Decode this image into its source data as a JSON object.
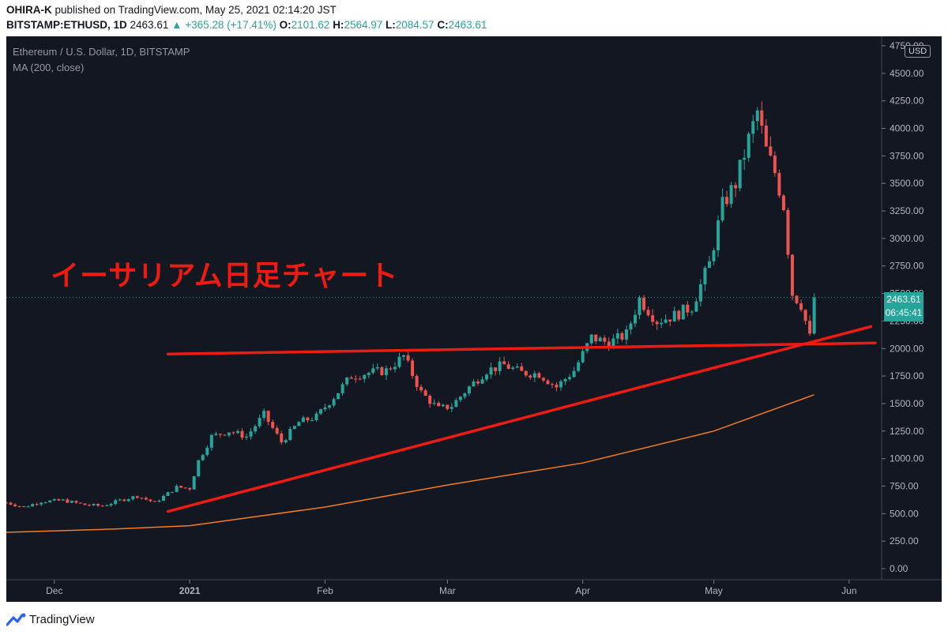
{
  "header": {
    "author": "OHIRA-K",
    "published_text": "published on TradingView.com, May 25, 2021 02:14:20 JST",
    "symbol": "BITSTAMP:ETHUSD, 1D",
    "last": "2463.61",
    "change": "+365.28 (+17.41%)",
    "o_label": "O:",
    "o": "2101.62",
    "h_label": "H:",
    "h": "2564.97",
    "l_label": "L:",
    "l": "2084.57",
    "c_label": "C:",
    "c": "2463.61"
  },
  "legend": {
    "title": "Ethereum / U.S. Dollar, 1D, BITSTAMP",
    "indicator": "MA (200, close)"
  },
  "annotation": {
    "text": "イーサリアム日足チャート"
  },
  "price_tag": {
    "price": "2463.61",
    "countdown": "06:45:41"
  },
  "currency": "USD",
  "footer": {
    "brand": "TradingView"
  },
  "colors": {
    "up": "#26a69a",
    "down": "#ef5350",
    "ma": "#f57c1f",
    "trendline": "#ef1a12",
    "bg": "#131722"
  },
  "chart_data": {
    "type": "candlestick",
    "title": "Ethereum / U.S. Dollar, 1D, BITSTAMP",
    "ylim": [
      0,
      4750
    ],
    "y_ticks": [
      "4750.00",
      "4500.00",
      "4250.00",
      "4000.00",
      "3750.00",
      "3500.00",
      "3250.00",
      "3000.00",
      "2750.00",
      "2500.00",
      "2250.00",
      "2000.00",
      "1750.00",
      "1500.00",
      "1250.00",
      "1000.00",
      "750.00",
      "500.00",
      "250.00",
      "0.00"
    ],
    "x_ticks": [
      "Dec",
      "2021",
      "Feb",
      "Mar",
      "Apr",
      "May",
      "Jun"
    ],
    "x_tick_dates": [
      "2020-12-01",
      "2021-01-01",
      "2021-02-01",
      "2021-03-01",
      "2021-04-01",
      "2021-05-01",
      "2021-06-01"
    ],
    "x_range": [
      "2020-11-20",
      "2021-06-07"
    ],
    "close_points": [
      [
        "2020-11-20",
        600
      ],
      [
        "2020-11-24",
        560
      ],
      [
        "2020-11-28",
        610
      ],
      [
        "2020-12-03",
        620
      ],
      [
        "2020-12-08",
        580
      ],
      [
        "2020-12-12",
        570
      ],
      [
        "2020-12-16",
        620
      ],
      [
        "2020-12-20",
        660
      ],
      [
        "2020-12-24",
        600
      ],
      [
        "2020-12-29",
        740
      ],
      [
        "2021-01-01",
        730
      ],
      [
        "2021-01-03",
        980
      ],
      [
        "2021-01-06",
        1200
      ],
      [
        "2021-01-10",
        1250
      ],
      [
        "2021-01-14",
        1200
      ],
      [
        "2021-01-18",
        1400
      ],
      [
        "2021-01-22",
        1150
      ],
      [
        "2021-01-26",
        1330
      ],
      [
        "2021-01-30",
        1380
      ],
      [
        "2021-02-03",
        1560
      ],
      [
        "2021-02-07",
        1750
      ],
      [
        "2021-02-11",
        1780
      ],
      [
        "2021-02-15",
        1800
      ],
      [
        "2021-02-19",
        1930
      ],
      [
        "2021-02-23",
        1600
      ],
      [
        "2021-02-27",
        1450
      ],
      [
        "2021-03-02",
        1480
      ],
      [
        "2021-03-06",
        1650
      ],
      [
        "2021-03-10",
        1800
      ],
      [
        "2021-03-14",
        1850
      ],
      [
        "2021-03-18",
        1780
      ],
      [
        "2021-03-22",
        1770
      ],
      [
        "2021-03-26",
        1650
      ],
      [
        "2021-03-30",
        1800
      ],
      [
        "2021-04-03",
        2100
      ],
      [
        "2021-04-07",
        2050
      ],
      [
        "2021-04-11",
        2130
      ],
      [
        "2021-04-14",
        2450
      ],
      [
        "2021-04-18",
        2250
      ],
      [
        "2021-04-22",
        2300
      ],
      [
        "2021-04-26",
        2380
      ],
      [
        "2021-04-30",
        2770
      ],
      [
        "2021-05-03",
        3300
      ],
      [
        "2021-05-06",
        3500
      ],
      [
        "2021-05-09",
        3900
      ],
      [
        "2021-05-11",
        4150
      ],
      [
        "2021-05-13",
        3800
      ],
      [
        "2021-05-15",
        3600
      ],
      [
        "2021-05-17",
        3300
      ],
      [
        "2021-05-19",
        2500
      ],
      [
        "2021-05-21",
        2400
      ],
      [
        "2021-05-23",
        2100
      ],
      [
        "2021-05-24",
        2463.61
      ]
    ],
    "ma200_points": [
      [
        "2020-11-20",
        330
      ],
      [
        "2020-12-15",
        360
      ],
      [
        "2021-01-01",
        390
      ],
      [
        "2021-02-01",
        560
      ],
      [
        "2021-03-01",
        760
      ],
      [
        "2021-04-01",
        960
      ],
      [
        "2021-05-01",
        1250
      ],
      [
        "2021-05-24",
        1580
      ]
    ],
    "trendlines": [
      {
        "from": [
          "2020-12-27",
          1950
        ],
        "to": [
          "2021-06-07",
          2050
        ]
      },
      {
        "from": [
          "2020-12-27",
          520
        ],
        "to": [
          "2021-06-06",
          2200
        ]
      }
    ],
    "last_price": 2463.61
  }
}
